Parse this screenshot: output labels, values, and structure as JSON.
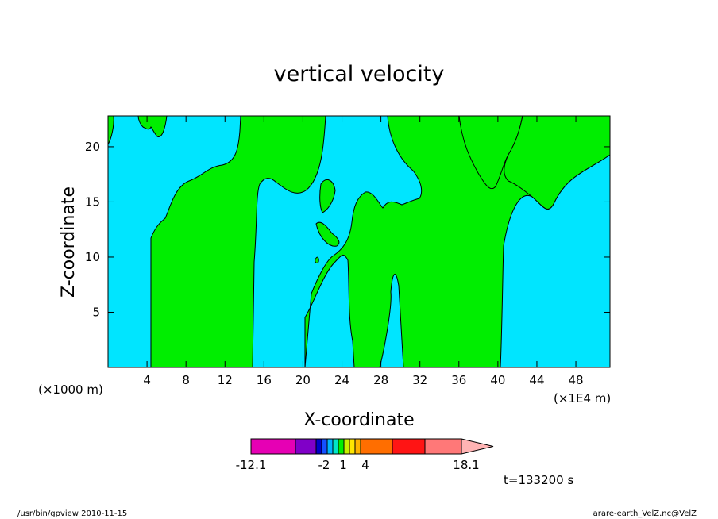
{
  "chart_data": {
    "type": "contour",
    "title": "vertical velocity",
    "xlabel": "X-coordinate",
    "ylabel": "Z-coordinate",
    "x_unit_left": "(×1000 m)",
    "x_unit_right": "(×1E4 m)",
    "xlim": [
      0,
      51.5
    ],
    "ylim": [
      0,
      22.8
    ],
    "xticks": [
      4,
      8,
      12,
      16,
      20,
      24,
      28,
      32,
      36,
      40,
      44,
      48
    ],
    "yticks": [
      5,
      10,
      15,
      20
    ],
    "time_label": "t=133200 s",
    "colors": {
      "negative_region": "#00e5ff",
      "positive_region": "#00ee00"
    },
    "colorbar": {
      "boxes": [
        {
          "color": "#e600b4"
        },
        {
          "color": "#8000c8"
        },
        {
          "color": "#0000c8"
        },
        {
          "color": "#1450ff"
        },
        {
          "color": "#00b4ff"
        },
        {
          "color": "#00e6c8"
        },
        {
          "color": "#00ee00"
        },
        {
          "color": "#c8f000"
        },
        {
          "color": "#ffe600"
        },
        {
          "color": "#ffb400"
        },
        {
          "color": "#ff6e00"
        },
        {
          "color": "#ff1414"
        },
        {
          "color": "#ff7878"
        },
        {
          "color": "#ffb4b4"
        }
      ],
      "labels": [
        "-12.1",
        "-2",
        "1",
        "4",
        "18.1"
      ]
    }
  },
  "footer": {
    "left": "/usr/bin/gpview   2010-11-15",
    "right": "arare-earth_VelZ.nc@VelZ"
  }
}
